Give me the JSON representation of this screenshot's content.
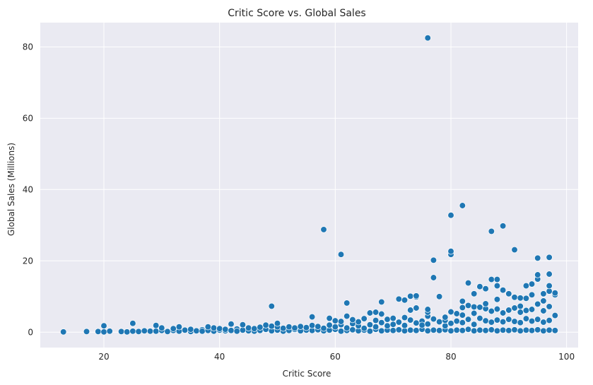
{
  "chart_data": {
    "type": "scatter",
    "title": "Critic Score vs. Global Sales",
    "xlabel": "Critic Score",
    "ylabel": "Global Sales (Millions)",
    "xlim": [
      9,
      102
    ],
    "ylim": [
      -4.3,
      86.8
    ],
    "xticks": [
      20,
      40,
      60,
      80,
      100
    ],
    "yticks": [
      0,
      20,
      40,
      60,
      80
    ],
    "grid": true,
    "point_color": "#1f77b4",
    "background": "#eaeaf2",
    "points": [
      [
        13,
        0.1
      ],
      [
        17,
        0.2
      ],
      [
        19,
        0.2
      ],
      [
        20,
        0.1
      ],
      [
        20,
        1.8
      ],
      [
        21,
        0.3
      ],
      [
        23,
        0.2
      ],
      [
        24,
        0.1
      ],
      [
        25,
        0.3
      ],
      [
        25,
        2.5
      ],
      [
        26,
        0.2
      ],
      [
        27,
        0.4
      ],
      [
        28,
        0.3
      ],
      [
        29,
        0.3
      ],
      [
        29,
        1.9
      ],
      [
        30,
        0.5
      ],
      [
        30,
        1.2
      ],
      [
        31,
        0.2
      ],
      [
        32,
        0.5
      ],
      [
        32,
        1.0
      ],
      [
        33,
        0.3
      ],
      [
        33,
        1.5
      ],
      [
        34,
        0.6
      ],
      [
        35,
        0.2
      ],
      [
        35,
        0.8
      ],
      [
        36,
        0.4
      ],
      [
        37,
        0.7
      ],
      [
        37,
        0.3
      ],
      [
        38,
        0.5
      ],
      [
        38,
        1.5
      ],
      [
        39,
        0.3
      ],
      [
        39,
        1.2
      ],
      [
        40,
        0.6
      ],
      [
        40,
        1.0
      ],
      [
        41,
        0.4
      ],
      [
        41,
        0.8
      ],
      [
        42,
        0.5
      ],
      [
        42,
        2.3
      ],
      [
        43,
        0.9
      ],
      [
        43,
        0.3
      ],
      [
        44,
        0.6
      ],
      [
        44,
        2.1
      ],
      [
        45,
        0.4
      ],
      [
        45,
        1.2
      ],
      [
        46,
        0.3
      ],
      [
        46,
        1.0
      ],
      [
        47,
        0.5
      ],
      [
        47,
        1.4
      ],
      [
        48,
        0.8
      ],
      [
        48,
        2.0
      ],
      [
        49,
        0.4
      ],
      [
        49,
        7.3
      ],
      [
        49,
        1.7
      ],
      [
        50,
        0.6
      ],
      [
        50,
        1.5
      ],
      [
        50,
        2.5
      ],
      [
        51,
        0.3
      ],
      [
        51,
        1.1
      ],
      [
        52,
        0.5
      ],
      [
        52,
        1.5
      ],
      [
        53,
        0.8
      ],
      [
        53,
        1.2
      ],
      [
        54,
        0.4
      ],
      [
        54,
        1.6
      ],
      [
        55,
        0.6
      ],
      [
        55,
        1.3
      ],
      [
        56,
        0.5
      ],
      [
        56,
        1.9
      ],
      [
        56,
        4.3
      ],
      [
        57,
        0.7
      ],
      [
        57,
        1.6
      ],
      [
        58,
        0.4
      ],
      [
        58,
        1.1
      ],
      [
        58,
        28.8
      ],
      [
        59,
        0.6
      ],
      [
        59,
        2.0
      ],
      [
        59,
        3.9
      ],
      [
        60,
        0.8
      ],
      [
        60,
        1.5
      ],
      [
        60,
        3.2
      ],
      [
        61,
        0.3
      ],
      [
        61,
        2.1
      ],
      [
        61,
        21.8
      ],
      [
        61,
        3.0
      ],
      [
        62,
        0.5
      ],
      [
        62,
        1.2
      ],
      [
        62,
        4.5
      ],
      [
        62,
        8.2
      ],
      [
        63,
        0.7
      ],
      [
        63,
        2.4
      ],
      [
        63,
        3.5
      ],
      [
        64,
        0.4
      ],
      [
        64,
        1.8
      ],
      [
        64,
        2.9
      ],
      [
        65,
        0.6
      ],
      [
        65,
        3.8
      ],
      [
        65,
        1.1
      ],
      [
        66,
        0.3
      ],
      [
        66,
        2.1
      ],
      [
        66,
        5.4
      ],
      [
        67,
        0.8
      ],
      [
        67,
        3.3
      ],
      [
        67,
        5.6
      ],
      [
        67,
        1.5
      ],
      [
        68,
        0.4
      ],
      [
        68,
        2.7
      ],
      [
        68,
        5.1
      ],
      [
        68,
        8.5
      ],
      [
        69,
        0.6
      ],
      [
        69,
        3.6
      ],
      [
        69,
        1.8
      ],
      [
        70,
        0.5
      ],
      [
        70,
        2.2
      ],
      [
        70,
        3.9
      ],
      [
        71,
        0.7
      ],
      [
        71,
        2.8
      ],
      [
        71,
        9.3
      ],
      [
        72,
        0.4
      ],
      [
        72,
        1.9
      ],
      [
        72,
        9.0
      ],
      [
        72,
        4.1
      ],
      [
        73,
        0.6
      ],
      [
        73,
        3.4
      ],
      [
        73,
        6.2
      ],
      [
        73,
        10.1
      ],
      [
        74,
        0.5
      ],
      [
        74,
        2.6
      ],
      [
        74,
        6.8
      ],
      [
        74,
        9.9
      ],
      [
        74,
        10.2
      ],
      [
        75,
        0.8
      ],
      [
        75,
        3.1
      ],
      [
        75,
        2.0
      ],
      [
        76,
        0.4
      ],
      [
        76,
        2.3
      ],
      [
        76,
        4.5
      ],
      [
        76,
        5.6
      ],
      [
        76,
        6.4
      ],
      [
        76,
        82.5
      ],
      [
        77,
        0.6
      ],
      [
        77,
        3.7
      ],
      [
        77,
        15.3
      ],
      [
        77,
        20.2
      ],
      [
        78,
        0.5
      ],
      [
        78,
        2.9
      ],
      [
        78,
        10.0
      ],
      [
        79,
        0.7
      ],
      [
        79,
        1.8
      ],
      [
        79,
        3.3
      ],
      [
        79,
        4.2
      ],
      [
        80,
        0.4
      ],
      [
        80,
        2.5
      ],
      [
        80,
        5.7
      ],
      [
        80,
        21.8
      ],
      [
        80,
        22.7
      ],
      [
        80,
        32.8
      ],
      [
        81,
        0.6
      ],
      [
        81,
        3.1
      ],
      [
        81,
        5.2
      ],
      [
        82,
        0.5
      ],
      [
        82,
        2.7
      ],
      [
        82,
        4.8
      ],
      [
        82,
        6.9
      ],
      [
        82,
        8.7
      ],
      [
        82,
        35.5
      ],
      [
        83,
        0.8
      ],
      [
        83,
        3.6
      ],
      [
        83,
        7.5
      ],
      [
        83,
        13.8
      ],
      [
        84,
        0.4
      ],
      [
        84,
        2.2
      ],
      [
        84,
        5.3
      ],
      [
        84,
        7.1
      ],
      [
        84,
        10.8
      ],
      [
        85,
        0.6
      ],
      [
        85,
        3.9
      ],
      [
        85,
        7.0
      ],
      [
        85,
        12.8
      ],
      [
        86,
        0.5
      ],
      [
        86,
        3.2
      ],
      [
        86,
        6.6
      ],
      [
        86,
        12.2
      ],
      [
        86,
        8.0
      ],
      [
        87,
        0.7
      ],
      [
        87,
        2.8
      ],
      [
        87,
        5.9
      ],
      [
        87,
        14.8
      ],
      [
        87,
        28.3
      ],
      [
        88,
        0.4
      ],
      [
        88,
        3.4
      ],
      [
        88,
        6.5
      ],
      [
        88,
        9.2
      ],
      [
        88,
        13.0
      ],
      [
        88,
        14.8
      ],
      [
        89,
        0.6
      ],
      [
        89,
        2.9
      ],
      [
        89,
        5.4
      ],
      [
        89,
        11.8
      ],
      [
        89,
        29.8
      ],
      [
        90,
        0.5
      ],
      [
        90,
        3.6
      ],
      [
        90,
        6.2
      ],
      [
        90,
        10.8
      ],
      [
        91,
        0.7
      ],
      [
        91,
        3.0
      ],
      [
        91,
        6.8
      ],
      [
        91,
        9.8
      ],
      [
        91,
        23.1
      ],
      [
        92,
        0.4
      ],
      [
        92,
        2.7
      ],
      [
        92,
        5.6
      ],
      [
        92,
        7.3
      ],
      [
        92,
        9.6
      ],
      [
        93,
        0.6
      ],
      [
        93,
        3.8
      ],
      [
        93,
        6.1
      ],
      [
        93,
        13.0
      ],
      [
        93,
        9.5
      ],
      [
        94,
        0.5
      ],
      [
        94,
        3.1
      ],
      [
        94,
        6.4
      ],
      [
        94,
        10.5
      ],
      [
        94,
        13.5
      ],
      [
        95,
        0.7
      ],
      [
        95,
        3.6
      ],
      [
        95,
        7.9
      ],
      [
        95,
        14.9
      ],
      [
        95,
        16.1
      ],
      [
        95,
        20.8
      ],
      [
        96,
        0.4
      ],
      [
        96,
        2.8
      ],
      [
        96,
        6.0
      ],
      [
        96,
        8.8
      ],
      [
        96,
        10.8
      ],
      [
        97,
        0.6
      ],
      [
        97,
        3.3
      ],
      [
        97,
        7.2
      ],
      [
        97,
        11.5
      ],
      [
        97,
        13.0
      ],
      [
        97,
        16.3
      ],
      [
        97,
        21.0
      ],
      [
        98,
        0.5
      ],
      [
        98,
        4.7
      ],
      [
        98,
        10.5
      ],
      [
        98,
        11.0
      ]
    ]
  }
}
